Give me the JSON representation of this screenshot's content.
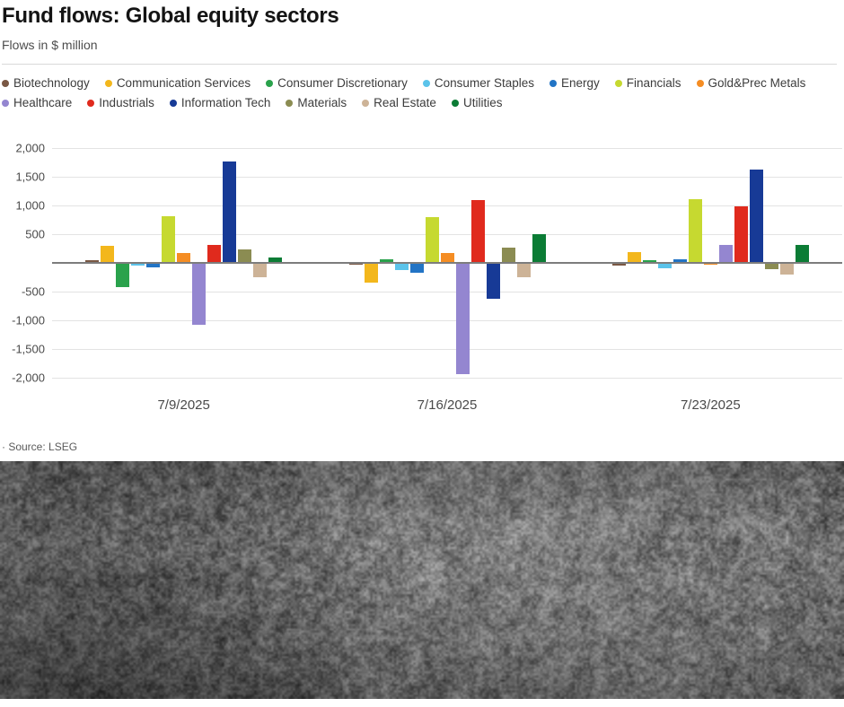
{
  "header": {
    "title": "Fund flows: Global equity sectors",
    "subtitle": "Flows in $ million"
  },
  "source": {
    "label": "· Source: LSEG"
  },
  "chart_data": {
    "type": "bar",
    "title": "Fund flows: Global equity sectors",
    "ylabel": "Flows in $ million",
    "categories": [
      "7/9/2025",
      "7/16/2025",
      "7/23/2025"
    ],
    "series": [
      {
        "name": "Biotechnology",
        "color": "#7a5844",
        "values": [
          40,
          -10,
          -25
        ]
      },
      {
        "name": "Communication Services",
        "color": "#f3b71c",
        "values": [
          300,
          -330,
          190
        ]
      },
      {
        "name": "Consumer Discretionary",
        "color": "#2aa24c",
        "values": [
          -400,
          70,
          45
        ]
      },
      {
        "name": "Consumer Staples",
        "color": "#5bc3ea",
        "values": [
          -25,
          -115,
          -75
        ]
      },
      {
        "name": "Energy",
        "color": "#2274c5",
        "values": [
          -70,
          -150,
          60
        ]
      },
      {
        "name": "Financials",
        "color": "#c6d930",
        "values": [
          810,
          790,
          1110
        ]
      },
      {
        "name": "Gold&Prec Metals",
        "color": "#f58d23",
        "values": [
          175,
          175,
          -20
        ]
      },
      {
        "name": "Healthcare",
        "color": "#9486d0",
        "values": [
          -1060,
          -1925,
          320
        ]
      },
      {
        "name": "Industrials",
        "color": "#e02a1d",
        "values": [
          320,
          1095,
          985
        ]
      },
      {
        "name": "Information Tech",
        "color": "#173a96",
        "values": [
          1770,
          -610,
          1620
        ]
      },
      {
        "name": "Materials",
        "color": "#8b8c52",
        "values": [
          230,
          265,
          -100
        ]
      },
      {
        "name": "Real Estate",
        "color": "#cdb397",
        "values": [
          -230,
          -235,
          -195
        ]
      },
      {
        "name": "Utilities",
        "color": "#0b7c35",
        "values": [
          100,
          505,
          320
        ]
      }
    ],
    "ylim": [
      -2200,
      2200
    ],
    "yticks": [
      2000,
      1500,
      1000,
      500,
      0,
      -500,
      -1000,
      -1500,
      -2000
    ],
    "grid": true,
    "legend_position": "top",
    "source": "Source: LSEG"
  }
}
